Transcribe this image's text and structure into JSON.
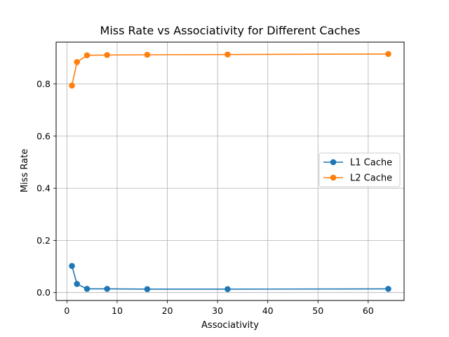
{
  "chart_data": {
    "type": "line",
    "title": "Miss Rate vs Associativity for Different Caches",
    "xlabel": "Associativity",
    "ylabel": "Miss Rate",
    "xlim": [
      -2.15,
      67.15
    ],
    "ylim": [
      -0.0305,
      0.9605
    ],
    "xticks": [
      0,
      10,
      20,
      30,
      40,
      50,
      60
    ],
    "yticks": [
      0.0,
      0.2,
      0.4,
      0.6,
      0.8
    ],
    "grid": true,
    "legend_position": "center-right",
    "x": [
      1,
      2,
      4,
      8,
      16,
      32,
      64
    ],
    "series": [
      {
        "name": "L1 Cache",
        "color": "#1f77b4",
        "marker": "circle",
        "values": [
          0.102,
          0.033,
          0.014,
          0.014,
          0.013,
          0.013,
          0.014
        ]
      },
      {
        "name": "L2 Cache",
        "color": "#ff7f0e",
        "marker": "circle",
        "values": [
          0.794,
          0.884,
          0.91,
          0.911,
          0.912,
          0.913,
          0.915
        ]
      }
    ]
  }
}
